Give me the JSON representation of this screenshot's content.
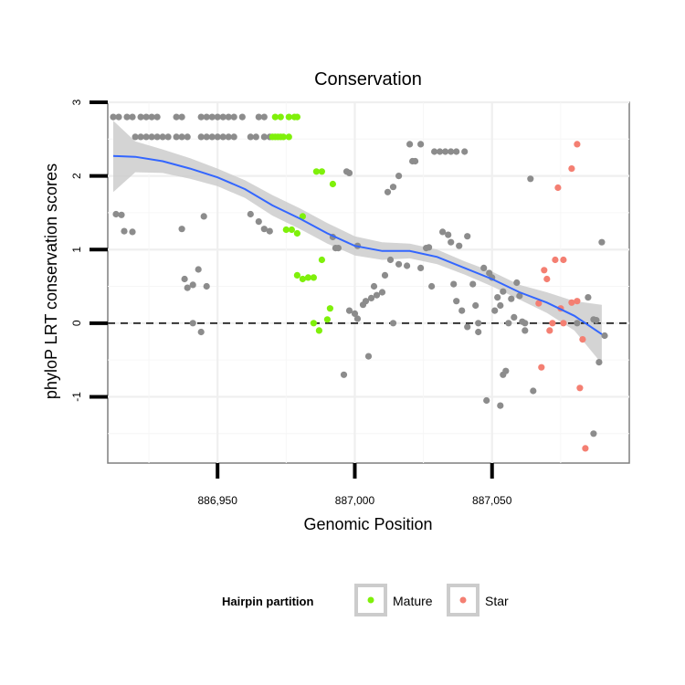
{
  "chart_data": {
    "type": "scatter",
    "title": "Conservation",
    "xlabel": "Genomic Position",
    "ylabel": "phyloP LRT conservation scores",
    "xlim": [
      886910,
      887100
    ],
    "ylim": [
      -1.9,
      3.0
    ],
    "x_ticks": [
      {
        "value": 886950,
        "label": "886,950"
      },
      {
        "value": 887000,
        "label": "887,000"
      },
      {
        "value": 887050,
        "label": "887,050"
      }
    ],
    "y_ticks": [
      {
        "value": -1,
        "label": "-1"
      },
      {
        "value": 0,
        "label": "0"
      },
      {
        "value": 1,
        "label": "1"
      },
      {
        "value": 2,
        "label": "2"
      },
      {
        "value": 3,
        "label": "3"
      }
    ],
    "grid": true,
    "reference_line": {
      "y": 0,
      "style": "dashed",
      "color": "#000000"
    },
    "colors": {
      "other": "#8c8c8c",
      "Mature": "#7ff00a",
      "Star": "#f47f72",
      "smooth": "#3366ff",
      "ribbon": "#cccccc"
    },
    "legend": {
      "title": "Hairpin partition",
      "position": "bottom",
      "entries": [
        {
          "name": "Mature",
          "color": "#7ff00a"
        },
        {
          "name": "Star",
          "color": "#f47f72"
        }
      ]
    },
    "series": [
      {
        "group": "other",
        "points": [
          [
            886912,
            2.8
          ],
          [
            886914,
            2.8
          ],
          [
            886917,
            2.8
          ],
          [
            886919,
            2.8
          ],
          [
            886922,
            2.8
          ],
          [
            886924,
            2.8
          ],
          [
            886926,
            2.8
          ],
          [
            886928,
            2.8
          ],
          [
            886935,
            2.8
          ],
          [
            886937,
            2.8
          ],
          [
            886944,
            2.8
          ],
          [
            886946,
            2.8
          ],
          [
            886948,
            2.8
          ],
          [
            886950,
            2.8
          ],
          [
            886952,
            2.8
          ],
          [
            886954,
            2.8
          ],
          [
            886956,
            2.8
          ],
          [
            886959,
            2.8
          ],
          [
            886965,
            2.8
          ],
          [
            886967,
            2.8
          ],
          [
            886920,
            2.53
          ],
          [
            886922,
            2.53
          ],
          [
            886924,
            2.53
          ],
          [
            886926,
            2.53
          ],
          [
            886928,
            2.53
          ],
          [
            886930,
            2.53
          ],
          [
            886932,
            2.53
          ],
          [
            886935,
            2.53
          ],
          [
            886937,
            2.53
          ],
          [
            886939,
            2.53
          ],
          [
            886944,
            2.53
          ],
          [
            886946,
            2.53
          ],
          [
            886948,
            2.53
          ],
          [
            886950,
            2.53
          ],
          [
            886952,
            2.53
          ],
          [
            886954,
            2.53
          ],
          [
            886956,
            2.53
          ],
          [
            886962,
            2.53
          ],
          [
            886964,
            2.53
          ],
          [
            886967,
            2.53
          ],
          [
            886969,
            2.53
          ],
          [
            886913,
            1.48
          ],
          [
            886915,
            1.47
          ],
          [
            886916,
            1.25
          ],
          [
            886919,
            1.24
          ],
          [
            886937,
            1.28
          ],
          [
            886945,
            1.45
          ],
          [
            886962,
            1.48
          ],
          [
            886965,
            1.38
          ],
          [
            886967,
            1.28
          ],
          [
            886969,
            1.25
          ],
          [
            886938,
            0.6
          ],
          [
            886939,
            0.48
          ],
          [
            886941,
            0.52
          ],
          [
            886943,
            0.73
          ],
          [
            886946,
            0.5
          ],
          [
            886941,
            0.0
          ],
          [
            886944,
            -0.12
          ],
          [
            886992,
            1.17
          ],
          [
            886993,
            1.02
          ],
          [
            886994,
            1.02
          ],
          [
            886997,
            2.06
          ],
          [
            886998,
            2.04
          ],
          [
            887001,
            1.05
          ],
          [
            886998,
            0.17
          ],
          [
            887000,
            0.13
          ],
          [
            887001,
            0.06
          ],
          [
            887003,
            0.25
          ],
          [
            887004,
            0.3
          ],
          [
            887006,
            0.34
          ],
          [
            887007,
            0.5
          ],
          [
            887008,
            0.38
          ],
          [
            887010,
            0.42
          ],
          [
            887011,
            0.65
          ],
          [
            887013,
            0.86
          ],
          [
            887014,
            0.0
          ],
          [
            887012,
            1.78
          ],
          [
            887014,
            1.85
          ],
          [
            887016,
            2.0
          ],
          [
            887016,
            0.8
          ],
          [
            887019,
            0.78
          ],
          [
            887020,
            2.43
          ],
          [
            887021,
            2.2
          ],
          [
            887022,
            2.2
          ],
          [
            887024,
            2.43
          ],
          [
            887024,
            0.75
          ],
          [
            887026,
            1.02
          ],
          [
            887027,
            1.03
          ],
          [
            887028,
            0.5
          ],
          [
            887029,
            2.33
          ],
          [
            887031,
            2.33
          ],
          [
            887033,
            2.33
          ],
          [
            887035,
            2.33
          ],
          [
            887037,
            2.33
          ],
          [
            887032,
            1.24
          ],
          [
            887034,
            1.2
          ],
          [
            887035,
            1.1
          ],
          [
            887038,
            1.05
          ],
          [
            887041,
            1.18
          ],
          [
            887036,
            0.53
          ],
          [
            887037,
            0.3
          ],
          [
            887039,
            0.17
          ],
          [
            887040,
            2.33
          ],
          [
            887041,
            -0.05
          ],
          [
            887043,
            0.53
          ],
          [
            887044,
            0.24
          ],
          [
            887045,
            0.0
          ],
          [
            887045,
            -0.12
          ],
          [
            887047,
            0.75
          ],
          [
            887049,
            0.68
          ],
          [
            887050,
            0.62
          ],
          [
            887051,
            0.17
          ],
          [
            887052,
            0.35
          ],
          [
            887053,
            0.24
          ],
          [
            887054,
            0.43
          ],
          [
            887056,
            0.0
          ],
          [
            887048,
            -1.05
          ],
          [
            887053,
            -1.12
          ],
          [
            887054,
            -0.7
          ],
          [
            887055,
            -0.65
          ],
          [
            887057,
            0.33
          ],
          [
            887058,
            0.08
          ],
          [
            887059,
            0.55
          ],
          [
            887060,
            0.37
          ],
          [
            887061,
            0.02
          ],
          [
            887062,
            0.0
          ],
          [
            887062,
            -0.1
          ],
          [
            887064,
            1.96
          ],
          [
            887065,
            -0.92
          ],
          [
            887081,
            0.0
          ],
          [
            887085,
            0.35
          ],
          [
            887087,
            0.05
          ],
          [
            887088,
            0.04
          ],
          [
            887089,
            -0.53
          ],
          [
            887090,
            1.1
          ],
          [
            887091,
            -0.17
          ],
          [
            887087,
            -1.5
          ],
          [
            886996,
            -0.7
          ],
          [
            887005,
            -0.45
          ]
        ]
      },
      {
        "group": "Mature",
        "points": [
          [
            886971,
            2.8
          ],
          [
            886973,
            2.8
          ],
          [
            886976,
            2.8
          ],
          [
            886978,
            2.8
          ],
          [
            886979,
            2.8
          ],
          [
            886970,
            2.53
          ],
          [
            886971,
            2.53
          ],
          [
            886972,
            2.53
          ],
          [
            886973,
            2.53
          ],
          [
            886974,
            2.53
          ],
          [
            886976,
            2.53
          ],
          [
            886975,
            1.27
          ],
          [
            886977,
            1.27
          ],
          [
            886979,
            1.22
          ],
          [
            886981,
            1.45
          ],
          [
            886986,
            2.06
          ],
          [
            886988,
            2.06
          ],
          [
            886992,
            1.89
          ],
          [
            886979,
            0.65
          ],
          [
            886981,
            0.6
          ],
          [
            886983,
            0.62
          ],
          [
            886985,
            0.62
          ],
          [
            886988,
            0.86
          ],
          [
            886991,
            0.2
          ],
          [
            886990,
            0.05
          ],
          [
            886985,
            0.0
          ],
          [
            886987,
            -0.1
          ]
        ]
      },
      {
        "group": "Star",
        "points": [
          [
            887067,
            0.27
          ],
          [
            887069,
            0.72
          ],
          [
            887070,
            0.6
          ],
          [
            887071,
            -0.1
          ],
          [
            887072,
            0.0
          ],
          [
            887073,
            0.86
          ],
          [
            887074,
            1.84
          ],
          [
            887075,
            0.2
          ],
          [
            887076,
            0.86
          ],
          [
            887068,
            -0.6
          ],
          [
            887079,
            2.1
          ],
          [
            887081,
            2.43
          ],
          [
            887079,
            0.28
          ],
          [
            887081,
            0.3
          ],
          [
            887082,
            -0.88
          ],
          [
            887083,
            -0.22
          ],
          [
            887084,
            -1.7
          ],
          [
            887076,
            0.0
          ]
        ]
      }
    ],
    "smooth": {
      "x": [
        886912,
        886920,
        886930,
        886940,
        886950,
        886960,
        886970,
        886980,
        886990,
        887000,
        887010,
        887020,
        887030,
        887040,
        887050,
        887060,
        887070,
        887080,
        887090
      ],
      "y": [
        2.27,
        2.26,
        2.2,
        2.1,
        1.98,
        1.82,
        1.6,
        1.42,
        1.22,
        1.05,
        0.98,
        0.98,
        0.9,
        0.75,
        0.6,
        0.42,
        0.28,
        0.1,
        -0.15
      ],
      "lo": [
        1.78,
        2.05,
        2.04,
        1.96,
        1.86,
        1.7,
        1.46,
        1.28,
        1.08,
        0.92,
        0.86,
        0.88,
        0.8,
        0.66,
        0.5,
        0.32,
        0.14,
        -0.1,
        -0.55
      ],
      "hi": [
        2.75,
        2.47,
        2.36,
        2.24,
        2.1,
        1.94,
        1.74,
        1.56,
        1.36,
        1.18,
        1.1,
        1.08,
        1.0,
        0.84,
        0.7,
        0.52,
        0.42,
        0.3,
        0.25
      ]
    }
  }
}
